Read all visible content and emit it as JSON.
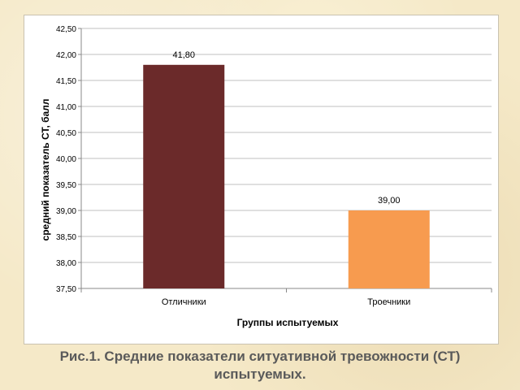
{
  "chart_data": {
    "type": "bar",
    "categories": [
      "Отличники",
      "Троечники"
    ],
    "values": [
      41.8,
      39.0
    ],
    "data_labels": [
      "41,80",
      "39,00"
    ],
    "colors": [
      "#6b2a2a",
      "#f79b4f"
    ],
    "xlabel": "Группы испытуемых",
    "ylabel": "средний показатель СТ, балл",
    "ylim": [
      37.5,
      42.5
    ],
    "y_ticks": [
      "37,50",
      "38,00",
      "38,50",
      "39,00",
      "39,50",
      "40,00",
      "40,50",
      "41,00",
      "41,50",
      "42,00",
      "42,50"
    ],
    "grid": true
  },
  "caption": {
    "line1": "Рис.1. Средние показатели ситуативной тревожности (СТ)",
    "line2": "испытуемых."
  }
}
